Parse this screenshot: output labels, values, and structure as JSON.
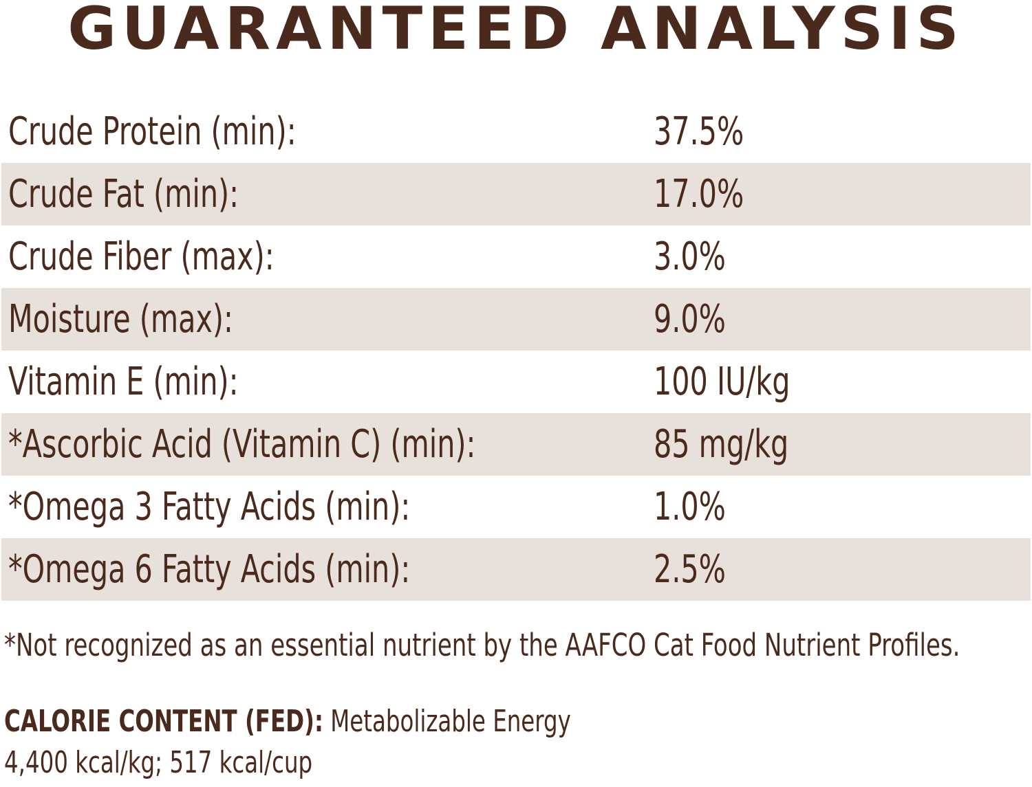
{
  "header": {
    "title": "GUARANTEED ANALYSIS"
  },
  "table": {
    "rows": [
      [
        "Crude Protein (min):",
        "37.5%"
      ],
      [
        "Crude Fat (min):",
        "17.0%"
      ],
      [
        "Crude Fiber (max):",
        "3.0%"
      ],
      [
        "Moisture (max):",
        "9.0%"
      ],
      [
        "Vitamin E (min):",
        "100 IU/kg"
      ],
      [
        "*Ascorbic Acid (Vitamin C) (min):",
        "85 mg/kg"
      ],
      [
        "*Omega 3 Fatty Acids (min):",
        "1.0%"
      ],
      [
        "*Omega 6 Fatty Acids (min):",
        "2.5%"
      ]
    ]
  },
  "footnote": "*Not recognized as an essential nutrient by the AAFCO Cat Food Nutrient Profiles.",
  "calorie": {
    "label": "CALORIE CONTENT (FED):",
    "text": "Metabolizable Energy",
    "values": "4,400 kcal/kg; 517 kcal/cup"
  }
}
